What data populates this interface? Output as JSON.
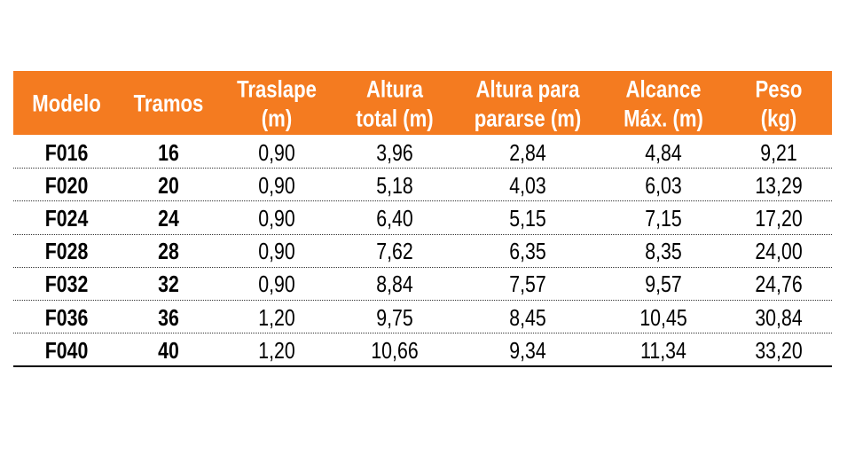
{
  "table": {
    "header": [
      [
        "Modelo"
      ],
      [
        "Tramos"
      ],
      [
        "Traslape",
        "(m)"
      ],
      [
        "Altura",
        "total (m)"
      ],
      [
        "Altura para",
        "pararse (m)"
      ],
      [
        "Alcance",
        "Máx. (m)"
      ],
      [
        "Peso",
        "(kg)"
      ]
    ],
    "rows": [
      [
        "F016",
        "16",
        "0,90",
        "3,96",
        "2,84",
        "4,84",
        "9,21"
      ],
      [
        "F020",
        "20",
        "0,90",
        "5,18",
        "4,03",
        "6,03",
        "13,29"
      ],
      [
        "F024",
        "24",
        "0,90",
        "6,40",
        "5,15",
        "7,15",
        "17,20"
      ],
      [
        "F028",
        "28",
        "0,90",
        "7,62",
        "6,35",
        "8,35",
        "24,00"
      ],
      [
        "F032",
        "32",
        "0,90",
        "8,84",
        "7,57",
        "9,57",
        "24,76"
      ],
      [
        "F036",
        "36",
        "1,20",
        "9,75",
        "8,45",
        "10,45",
        "30,84"
      ],
      [
        "F040",
        "40",
        "1,20",
        "10,66",
        "9,34",
        "11,34",
        "33,20"
      ]
    ]
  }
}
